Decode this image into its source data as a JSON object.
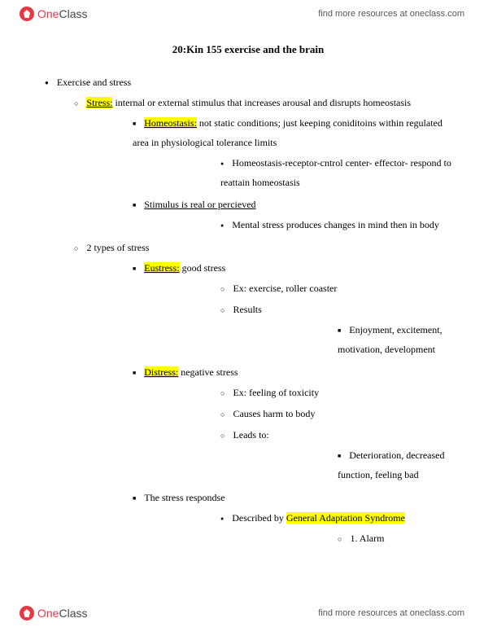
{
  "brand": {
    "one": "One",
    "class": "Class"
  },
  "resources_text": "find more resources at oneclass.com",
  "title": "20:Kin 155 exercise and the brain",
  "items": {
    "exercise_and_stress": "Exercise and stress",
    "stress_label": "Stress:",
    "stress_def": " internal or external stimulus that increases arousal and disrupts homeostasis",
    "homeostasis_label": "Homeostasis:",
    "homeostasis_def": " not static conditions; just keeping coniditoins within regulated area in physiological tolerance limits",
    "homeostasis_chain": "Homeostasis-receptor-cntrol center- effector- respond to reattain homeostasis",
    "stimulus": "Stimulus is real or percieved",
    "mental_stress": "Mental stress produces changes in mind then in body",
    "two_types": "2 types of stress",
    "eustress_label": "Eustress:",
    "eustress_def": " good stress",
    "eustress_ex": "Ex: exercise, roller coaster",
    "results": "Results",
    "results_items": "Enjoyment, excitement, motivation, development",
    "distress_label": "Distress:",
    "distress_def": " negative stress",
    "distress_ex": "Ex: feeling of toxicity",
    "causes_harm": "Causes harm to body",
    "leads_to": "Leads to:",
    "leads_items": "Deterioration, decreased function, feeling bad",
    "stress_response": "The stress respondse",
    "described_by": "Described by ",
    "gas": "General Adaptation Syndrome",
    "alarm": "1. Alarm"
  },
  "colors": {
    "highlight": "#ffff00",
    "text": "#000000",
    "background": "#ffffff",
    "brand_red": "#e63946"
  }
}
